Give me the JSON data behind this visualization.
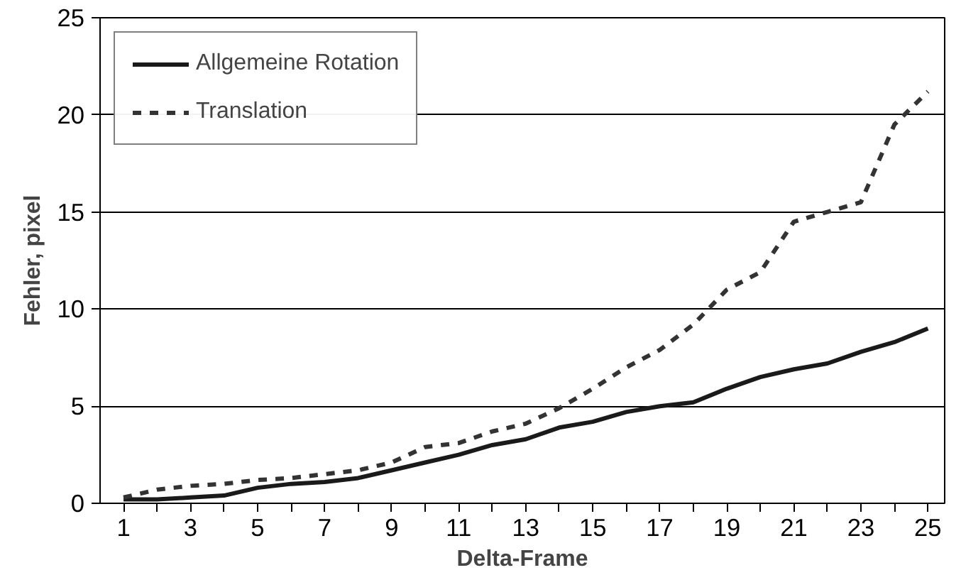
{
  "chart_data": {
    "type": "line",
    "xlabel": "Delta-Frame",
    "ylabel": "Fehler, pixel",
    "x": [
      1,
      2,
      3,
      4,
      5,
      6,
      7,
      8,
      9,
      10,
      11,
      12,
      13,
      14,
      15,
      16,
      17,
      18,
      19,
      20,
      21,
      22,
      23,
      24,
      25
    ],
    "xlim": [
      0.3,
      25.5
    ],
    "xticks": [
      1,
      {
        "value": 2,
        "label": null
      },
      3,
      {
        "value": 4,
        "label": null
      },
      5,
      {
        "value": 6,
        "label": null
      },
      7,
      {
        "value": 8,
        "label": null
      },
      9,
      {
        "value": 10,
        "label": null
      },
      11,
      {
        "value": 12,
        "label": null
      },
      13,
      {
        "value": 14,
        "label": null
      },
      15,
      {
        "value": 16,
        "label": null
      },
      17,
      {
        "value": 18,
        "label": null
      },
      19,
      {
        "value": 20,
        "label": null
      },
      21,
      {
        "value": 22,
        "label": null
      },
      23,
      {
        "value": 24,
        "label": null
      },
      25
    ],
    "ylim": [
      0,
      25
    ],
    "yticks": [
      0,
      5,
      10,
      15,
      20,
      25
    ],
    "grid": "y",
    "legend": "top left",
    "series": [
      {
        "name": "Allgemeine Rotation",
        "color": "#1a1a1a",
        "line_style": "solid",
        "values": [
          0.2,
          0.2,
          0.3,
          0.4,
          0.8,
          1.0,
          1.1,
          1.3,
          1.7,
          2.1,
          2.5,
          3.0,
          3.3,
          3.9,
          4.2,
          4.7,
          5.0,
          5.2,
          5.9,
          6.5,
          6.9,
          7.2,
          7.8,
          8.3,
          9.0
        ]
      },
      {
        "name": "Translation",
        "color": "#333333",
        "line_style": "dashed",
        "values": [
          0.3,
          0.7,
          0.9,
          1.0,
          1.2,
          1.3,
          1.5,
          1.7,
          2.1,
          2.9,
          3.1,
          3.7,
          4.1,
          4.9,
          5.9,
          7.0,
          7.9,
          9.2,
          11.0,
          11.9,
          14.5,
          15.0,
          15.5,
          19.5,
          21.2
        ]
      }
    ]
  }
}
